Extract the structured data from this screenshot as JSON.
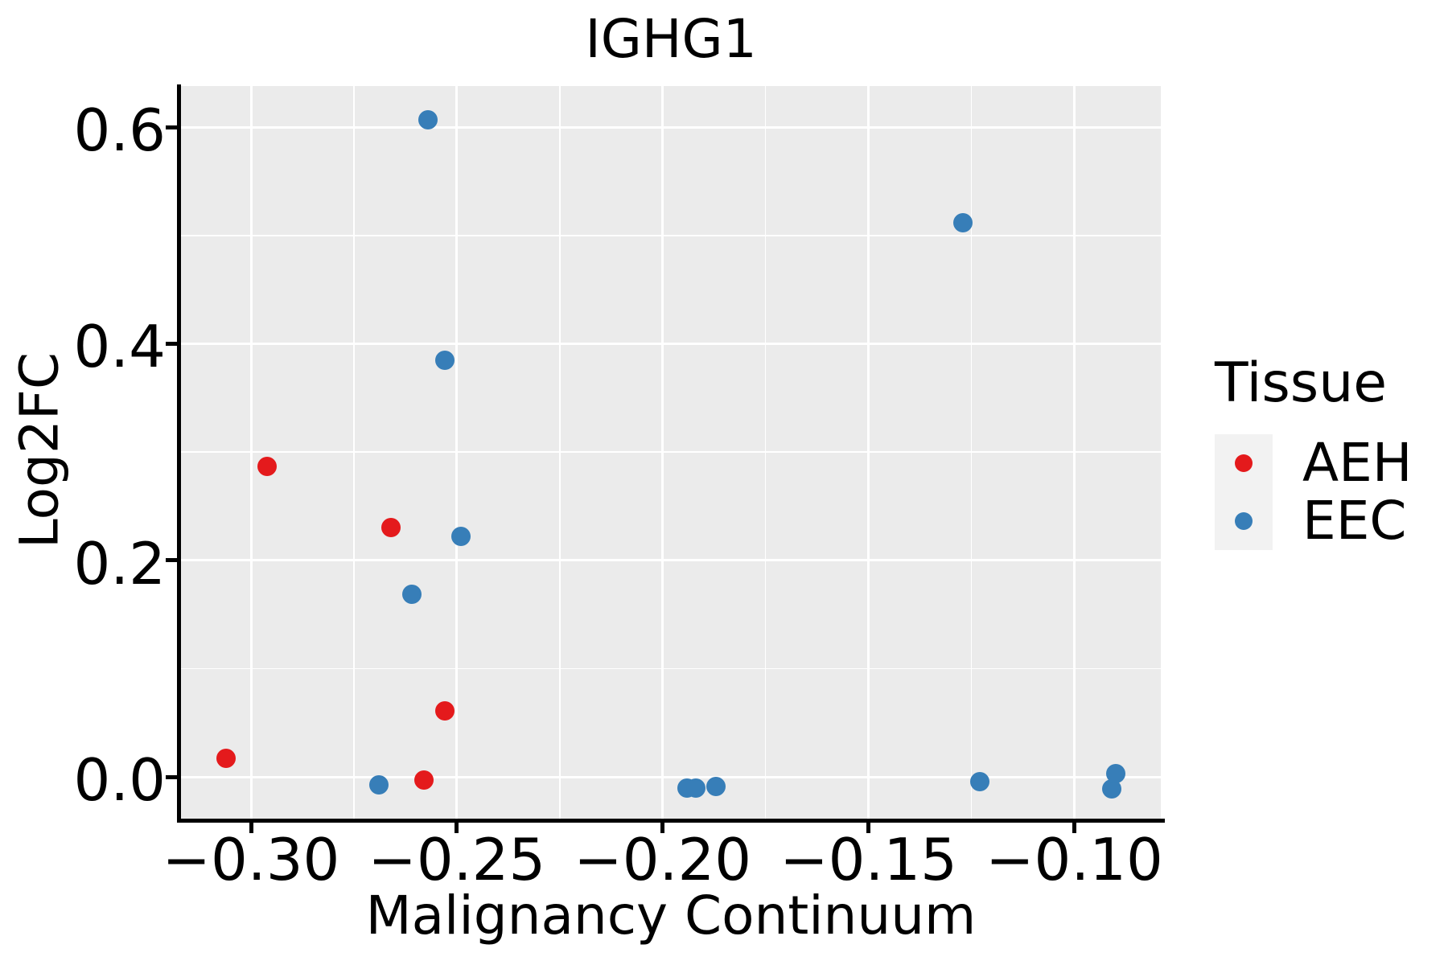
{
  "figure_title": "IGHG1",
  "chart_data": {
    "type": "scatter",
    "title": "IGHG1",
    "xlabel": "Malignancy Continuum",
    "ylabel": "Log2FC",
    "xlim": [
      -0.317,
      -0.079
    ],
    "ylim": [
      -0.04,
      0.638
    ],
    "grid": true,
    "panel_bg": "#EBEBEB",
    "gridline_color": "#FFFFFF",
    "legend_position": "right",
    "x_major_ticks": [
      -0.3,
      -0.25,
      -0.2,
      -0.15,
      -0.1
    ],
    "x_tick_labels": [
      "−0.30",
      "−0.25",
      "−0.20",
      "−0.15",
      "−0.10"
    ],
    "x_minor_ticks": [
      -0.275,
      -0.225,
      -0.175,
      -0.125
    ],
    "y_major_ticks": [
      0.0,
      0.2,
      0.4,
      0.6
    ],
    "y_tick_labels": [
      "0.0",
      "0.2",
      "0.4",
      "0.6"
    ],
    "y_minor_ticks": [
      0.1,
      0.3,
      0.5
    ],
    "series": [
      {
        "name": "AEH",
        "color": "#E41A1C",
        "points": [
          [
            -0.306,
            0.017
          ],
          [
            -0.296,
            0.287
          ],
          [
            -0.266,
            0.23
          ],
          [
            -0.258,
            -0.003
          ],
          [
            -0.253,
            0.061
          ]
        ]
      },
      {
        "name": "EEC",
        "color": "#377EB8",
        "points": [
          [
            -0.269,
            -0.007
          ],
          [
            -0.261,
            0.169
          ],
          [
            -0.257,
            0.607
          ],
          [
            -0.253,
            0.385
          ],
          [
            -0.249,
            0.222
          ],
          [
            -0.194,
            -0.01
          ],
          [
            -0.192,
            -0.01
          ],
          [
            -0.187,
            -0.009
          ],
          [
            -0.127,
            0.512
          ],
          [
            -0.123,
            -0.004
          ],
          [
            -0.091,
            -0.011
          ],
          [
            -0.09,
            0.003
          ]
        ]
      }
    ]
  },
  "legend": {
    "title": "Tissue",
    "items": [
      {
        "label": "AEH",
        "color": "#E41A1C"
      },
      {
        "label": "EEC",
        "color": "#377EB8"
      }
    ]
  },
  "colors": {
    "panel_bg": "#EBEBEB",
    "gridline": "#FFFFFF",
    "legend_key_bg": "#F2F2F2",
    "axis": "#000000",
    "text": "#000000"
  }
}
